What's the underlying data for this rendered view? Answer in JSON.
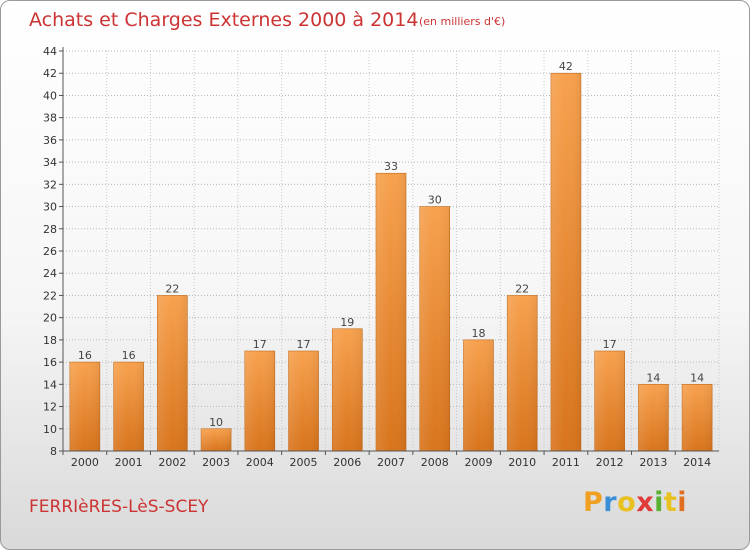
{
  "header": {
    "title": "Achats et Charges Externes 2000 à 2014",
    "unit": "(en milliers d'€)"
  },
  "footer": {
    "commune": "FERRIèRES-LèS-SCEY",
    "logo_text": "Proxiti",
    "logo_colors": [
      "#f0a020",
      "#3a8fd8",
      "#e8c020",
      "#e03a3a",
      "#5ab030",
      "#e8c020",
      "#e07020"
    ]
  },
  "chart_data": {
    "type": "bar",
    "title": "Achats et Charges Externes 2000 à 2014",
    "subtitle": "(en milliers d'€)",
    "categories": [
      "2000",
      "2001",
      "2002",
      "2003",
      "2004",
      "2005",
      "2006",
      "2007",
      "2008",
      "2009",
      "2010",
      "2011",
      "2012",
      "2013",
      "2014"
    ],
    "values": [
      16,
      16,
      22,
      10,
      17,
      17,
      19,
      33,
      30,
      18,
      22,
      42,
      17,
      14,
      14
    ],
    "ylim": [
      8,
      44
    ],
    "yticks": [
      8,
      10,
      12,
      14,
      16,
      18,
      20,
      22,
      24,
      26,
      28,
      30,
      32,
      34,
      36,
      38,
      40,
      42,
      44
    ],
    "grid": true,
    "bar_color": "#f0a050",
    "xlabel": "",
    "ylabel": ""
  }
}
